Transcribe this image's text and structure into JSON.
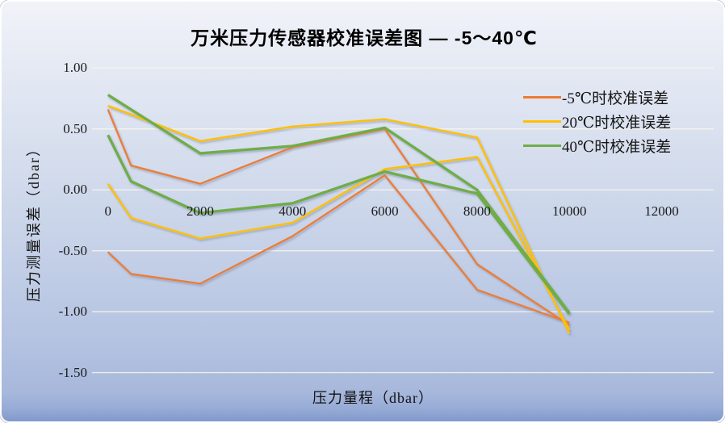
{
  "title": "万米压力传感器校准误差图 — -5～40℃",
  "y_axis": {
    "title": "压力测量误差（dbar）",
    "tick_labels": [
      "1.00",
      "0.50",
      "0.00",
      "-0.50",
      "-1.00",
      "-1.50"
    ],
    "tick_values": [
      1.0,
      0.5,
      0.0,
      -0.5,
      -1.0,
      -1.5
    ]
  },
  "x_axis": {
    "title": "压力量程（dbar）",
    "tick_labels": [
      "0",
      "2000",
      "4000",
      "6000",
      "8000",
      "10000",
      "12000"
    ],
    "tick_values": [
      0,
      2000,
      4000,
      6000,
      8000,
      10000,
      12000
    ]
  },
  "legend": [
    {
      "label": "-5℃时校准误差",
      "color": "#ED7D31"
    },
    {
      "label": "20℃时校准误差",
      "color": "#FFC000"
    },
    {
      "label": "40℃时校准误差",
      "color": "#70AD47"
    }
  ],
  "chart_data": {
    "type": "line",
    "title": "万米压力传感器校准误差图 — -5～40℃",
    "xlabel": "压力量程（dbar）",
    "ylabel": "压力测量误差（dbar）",
    "xlim": [
      0,
      12000
    ],
    "ylim": [
      -1.5,
      1.0
    ],
    "grid": true,
    "legend_position": "right",
    "x": [
      0,
      500,
      2000,
      4000,
      6000,
      8000,
      10000
    ],
    "series": [
      {
        "name": "-5℃时校准误差 (line 1)",
        "color": "#ED7D31",
        "width": 2.3,
        "values": [
          0.66,
          0.2,
          0.05,
          0.35,
          0.5,
          -0.61,
          -1.11
        ]
      },
      {
        "name": "-5℃时校准误差 (line 2)",
        "color": "#ED7D31",
        "width": 2.3,
        "values": [
          -0.51,
          -0.69,
          -0.77,
          -0.38,
          0.12,
          -0.82,
          -1.09
        ]
      },
      {
        "name": "20℃时校准误差 (line 1)",
        "color": "#FFC000",
        "width": 2.5,
        "values": [
          0.69,
          0.62,
          0.4,
          0.52,
          0.58,
          0.43,
          -1.18
        ]
      },
      {
        "name": "20℃时校准误差 (line 2)",
        "color": "#FFC000",
        "width": 2.5,
        "values": [
          0.05,
          -0.23,
          -0.4,
          -0.27,
          0.17,
          0.27,
          -1.15
        ]
      },
      {
        "name": "40℃时校准误差 (line 1)",
        "color": "#70AD47",
        "width": 3.3,
        "values": [
          0.78,
          0.66,
          0.3,
          0.36,
          0.51,
          0.0,
          -1.01
        ]
      },
      {
        "name": "40℃时校准误差 (line 2)",
        "color": "#70AD47",
        "width": 3.3,
        "values": [
          0.45,
          0.07,
          -0.19,
          -0.11,
          0.15,
          -0.03,
          -1.02
        ]
      }
    ]
  }
}
